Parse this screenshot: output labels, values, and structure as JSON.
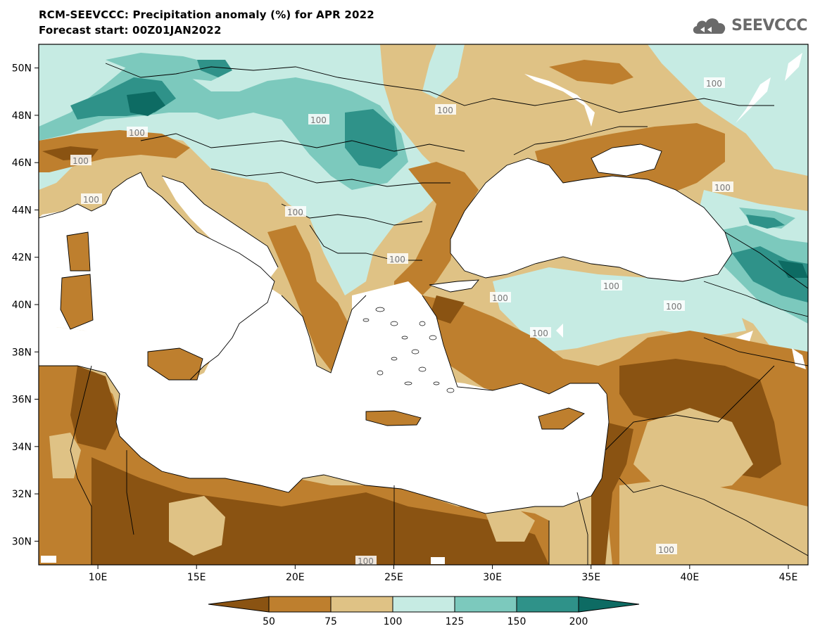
{
  "header": {
    "title_line1": "RCM-SEEVCCC: Precipitation anomaly (%) for APR 2022",
    "title_line2": "Forecast start: 00Z01JAN2022",
    "logo_text": "SEEVCCC"
  },
  "map": {
    "lon_range": [
      7,
      46
    ],
    "lat_range": [
      29,
      51
    ],
    "lon_ticks": [
      "10E",
      "15E",
      "20E",
      "25E",
      "30E",
      "35E",
      "40E",
      "45E"
    ],
    "lat_ticks": [
      "30N",
      "32N",
      "34N",
      "36N",
      "38N",
      "40N",
      "42N",
      "44N",
      "46N",
      "48N",
      "50N"
    ],
    "contour_labels": [
      "100",
      "100",
      "100",
      "100",
      "100",
      "100",
      "100",
      "100",
      "100",
      "100",
      "100",
      "100",
      "100",
      "100",
      "100"
    ]
  },
  "legend": {
    "labels": [
      "50",
      "75",
      "100",
      "125",
      "150",
      "200"
    ],
    "colors": [
      "#8a5312",
      "#be7f2e",
      "#dfc285",
      "#c6ebe3",
      "#7cc9bd",
      "#2f9289",
      "#0d6b63"
    ]
  }
}
